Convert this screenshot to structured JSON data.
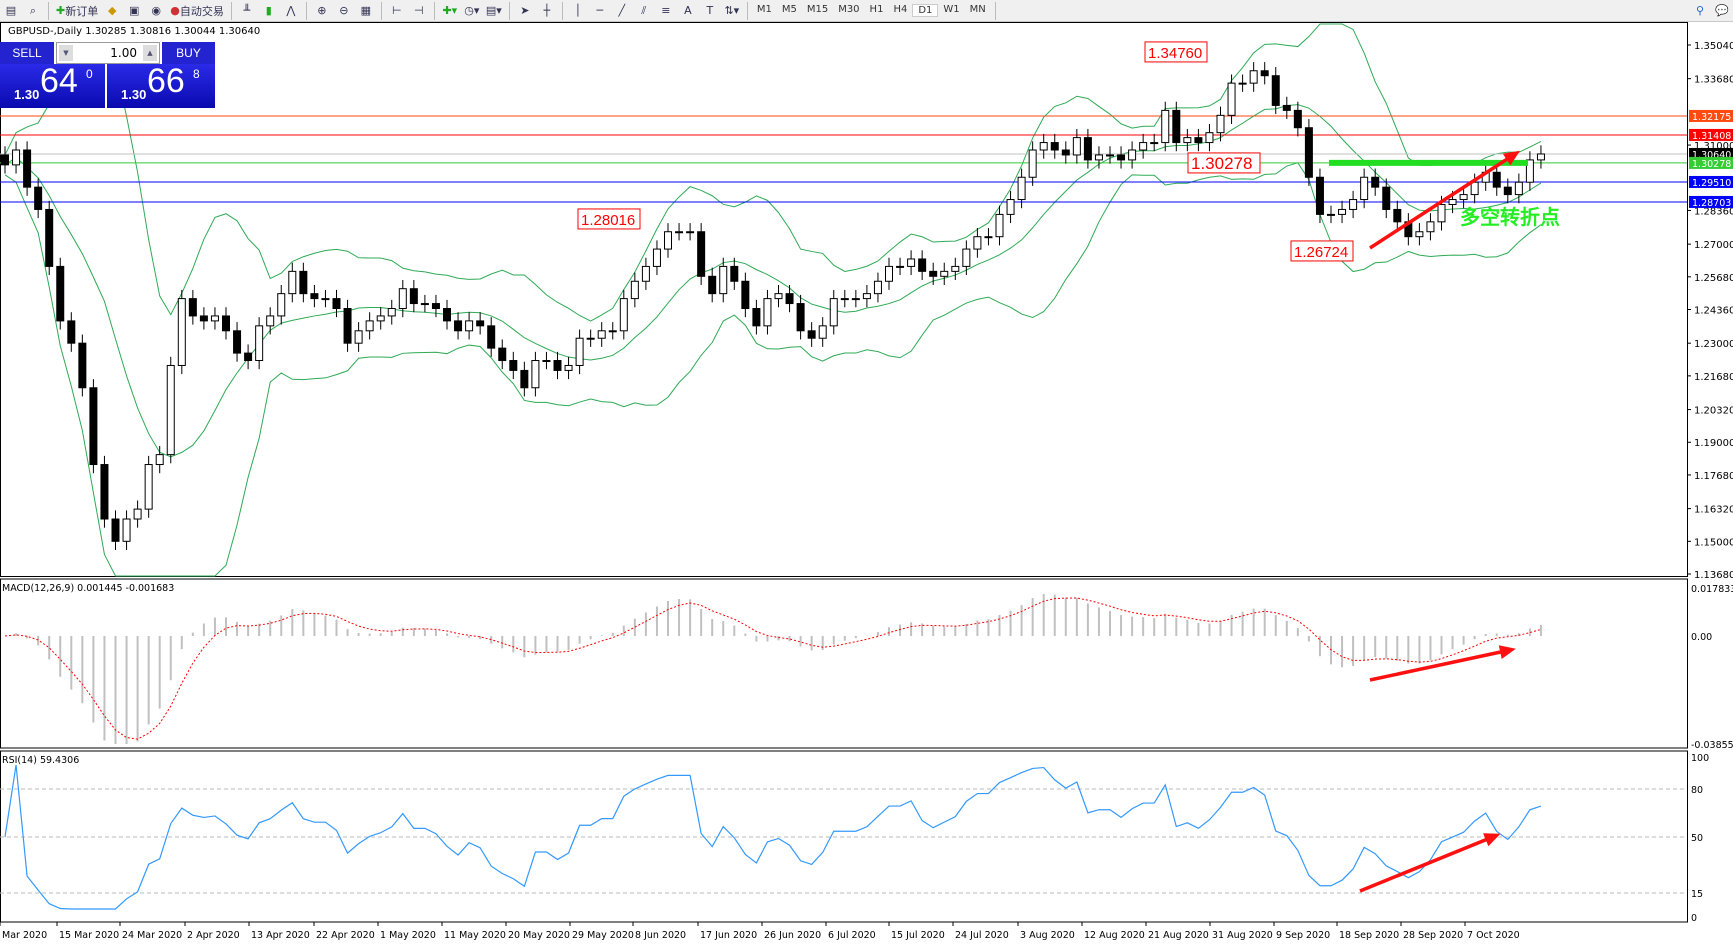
{
  "toolbar": {
    "new_order": "新订单",
    "auto_trading": "自动交易",
    "timeframes": [
      "M1",
      "M5",
      "M15",
      "M30",
      "H1",
      "H4",
      "D1",
      "W1",
      "MN"
    ],
    "active_timeframe": "D1",
    "icons": [
      "new-chart-icon",
      "zoom-chart-icon",
      "new-order-icon",
      "market-watch-icon",
      "navigator-icon",
      "signals-icon",
      "auto-trading-icon",
      "bar-chart-icon",
      "candlestick-icon",
      "line-chart-icon",
      "zoom-in-icon",
      "zoom-out-icon",
      "tile-icon",
      "autoscroll-icon",
      "chart-shift-icon",
      "indicators-icon",
      "periods-icon",
      "templates-icon",
      "cursor-icon",
      "crosshair-icon",
      "vertical-line-icon",
      "horizontal-line-icon",
      "trendline-icon",
      "channel-icon",
      "fibonacci-icon",
      "text-icon",
      "text-label-icon",
      "arrows-icon",
      "search-icon",
      "chat-icon"
    ]
  },
  "chart": {
    "title": "GBPUSD-,Daily  1.30285 1.30816 1.30044 1.30640"
  },
  "trade": {
    "sell": "SELL",
    "buy": "BUY",
    "lot": "1.00",
    "sell_prefix": "1.30",
    "sell_main": "64",
    "sell_pip": "0",
    "buy_prefix": "1.30",
    "buy_main": "66",
    "buy_pip": "8"
  },
  "chart_data": {
    "type": "candlestick",
    "price_axis": {
      "range": [
        1.1368,
        1.3504
      ],
      "ticks": [
        "1.35040",
        "1.33680",
        "1.31000",
        "1.28360",
        "1.27000",
        "1.25680",
        "1.24360",
        "1.23000",
        "1.21680",
        "1.20320",
        "1.19000",
        "1.17680",
        "1.16320",
        "1.15000",
        "1.13680"
      ]
    },
    "closes": [
      1.302,
      1.308,
      1.293,
      1.284,
      1.261,
      1.239,
      1.23,
      1.212,
      1.181,
      1.159,
      1.15,
      1.159,
      1.163,
      1.181,
      1.185,
      1.221,
      1.248,
      1.241,
      1.239,
      1.241,
      1.235,
      1.226,
      1.223,
      1.237,
      1.241,
      1.25,
      1.259,
      1.25,
      1.248,
      1.248,
      1.244,
      1.23,
      1.235,
      1.239,
      1.241,
      1.244,
      1.252,
      1.246,
      1.246,
      1.244,
      1.239,
      1.235,
      1.239,
      1.237,
      1.228,
      1.223,
      1.219,
      1.212,
      1.223,
      1.223,
      1.219,
      1.221,
      1.232,
      1.232,
      1.235,
      1.235,
      1.248,
      1.255,
      1.261,
      1.268,
      1.275,
      1.275,
      1.275,
      1.257,
      1.25,
      1.261,
      1.255,
      1.244,
      1.237,
      1.248,
      1.25,
      1.246,
      1.235,
      1.232,
      1.237,
      1.248,
      1.248,
      1.248,
      1.25,
      1.255,
      1.261,
      1.261,
      1.264,
      1.259,
      1.257,
      1.259,
      1.261,
      1.268,
      1.273,
      1.273,
      1.282,
      1.288,
      1.297,
      1.308,
      1.311,
      1.308,
      1.306,
      1.313,
      1.304,
      1.306,
      1.306,
      1.304,
      1.308,
      1.311,
      1.311,
      1.324,
      1.311,
      1.313,
      1.311,
      1.315,
      1.322,
      1.335,
      1.335,
      1.34,
      1.338,
      1.326,
      1.324,
      1.317,
      1.297,
      1.282,
      1.282,
      1.284,
      1.288,
      1.297,
      1.293,
      1.284,
      1.279,
      1.273,
      1.275,
      1.279,
      1.286,
      1.288,
      1.29,
      1.295,
      1.299,
      1.293,
      1.29,
      1.295,
      1.304,
      1.3064
    ],
    "date_labels": [
      "Mar 2020",
      "15 Mar 2020",
      "24 Mar 2020",
      "2 Apr 2020",
      "13 Apr 2020",
      "22 Apr 2020",
      "1 May 2020",
      "11 May 2020",
      "20 May 2020",
      "29 May 2020",
      "8 Jun 2020",
      "17 Jun 2020",
      "26 Jun 2020",
      "6 Jul 2020",
      "15 Jul 2020",
      "24 Jul 2020",
      "3 Aug 2020",
      "12 Aug 2020",
      "21 Aug 2020",
      "31 Aug 2020",
      "9 Sep 2020",
      "18 Sep 2020",
      "28 Sep 2020",
      "7 Oct 2020"
    ],
    "hlines": [
      {
        "value": "1.32175",
        "color": "#ff4a10"
      },
      {
        "value": "1.31408",
        "color": "#ff0000"
      },
      {
        "value": "1.30640",
        "color": "#000000",
        "line": "#c0c0c0"
      },
      {
        "value": "1.30278",
        "color": "#33cc33"
      },
      {
        "value": "1.29510",
        "color": "#0000ff"
      },
      {
        "value": "1.28703",
        "color": "#0000ff"
      }
    ],
    "price_labels": [
      {
        "text": "1.34760",
        "value": 1.3476
      },
      {
        "text": "1.30278",
        "value": 1.30278
      },
      {
        "text": "1.28016",
        "value": 1.28016
      },
      {
        "text": "1.26724",
        "value": 1.26724
      }
    ],
    "annotation": "多空转折点",
    "indicators": {
      "bollinger": {
        "color": "#2eaa55"
      },
      "macd": {
        "label": "MACD(12,26,9) 0.001445 -0.001683",
        "range": [
          -0.038559,
          0.017833
        ],
        "ticks": [
          "0.017833",
          "0.00",
          "-0.038559"
        ],
        "histogram_color": "#c0c0c0",
        "signal_color": "#ff0000"
      },
      "rsi": {
        "label": "RSI(14) 59.4306",
        "range": [
          0,
          100
        ],
        "levels": [
          "100",
          "80",
          "50",
          "15",
          "0"
        ],
        "color": "#3399ff"
      }
    }
  }
}
